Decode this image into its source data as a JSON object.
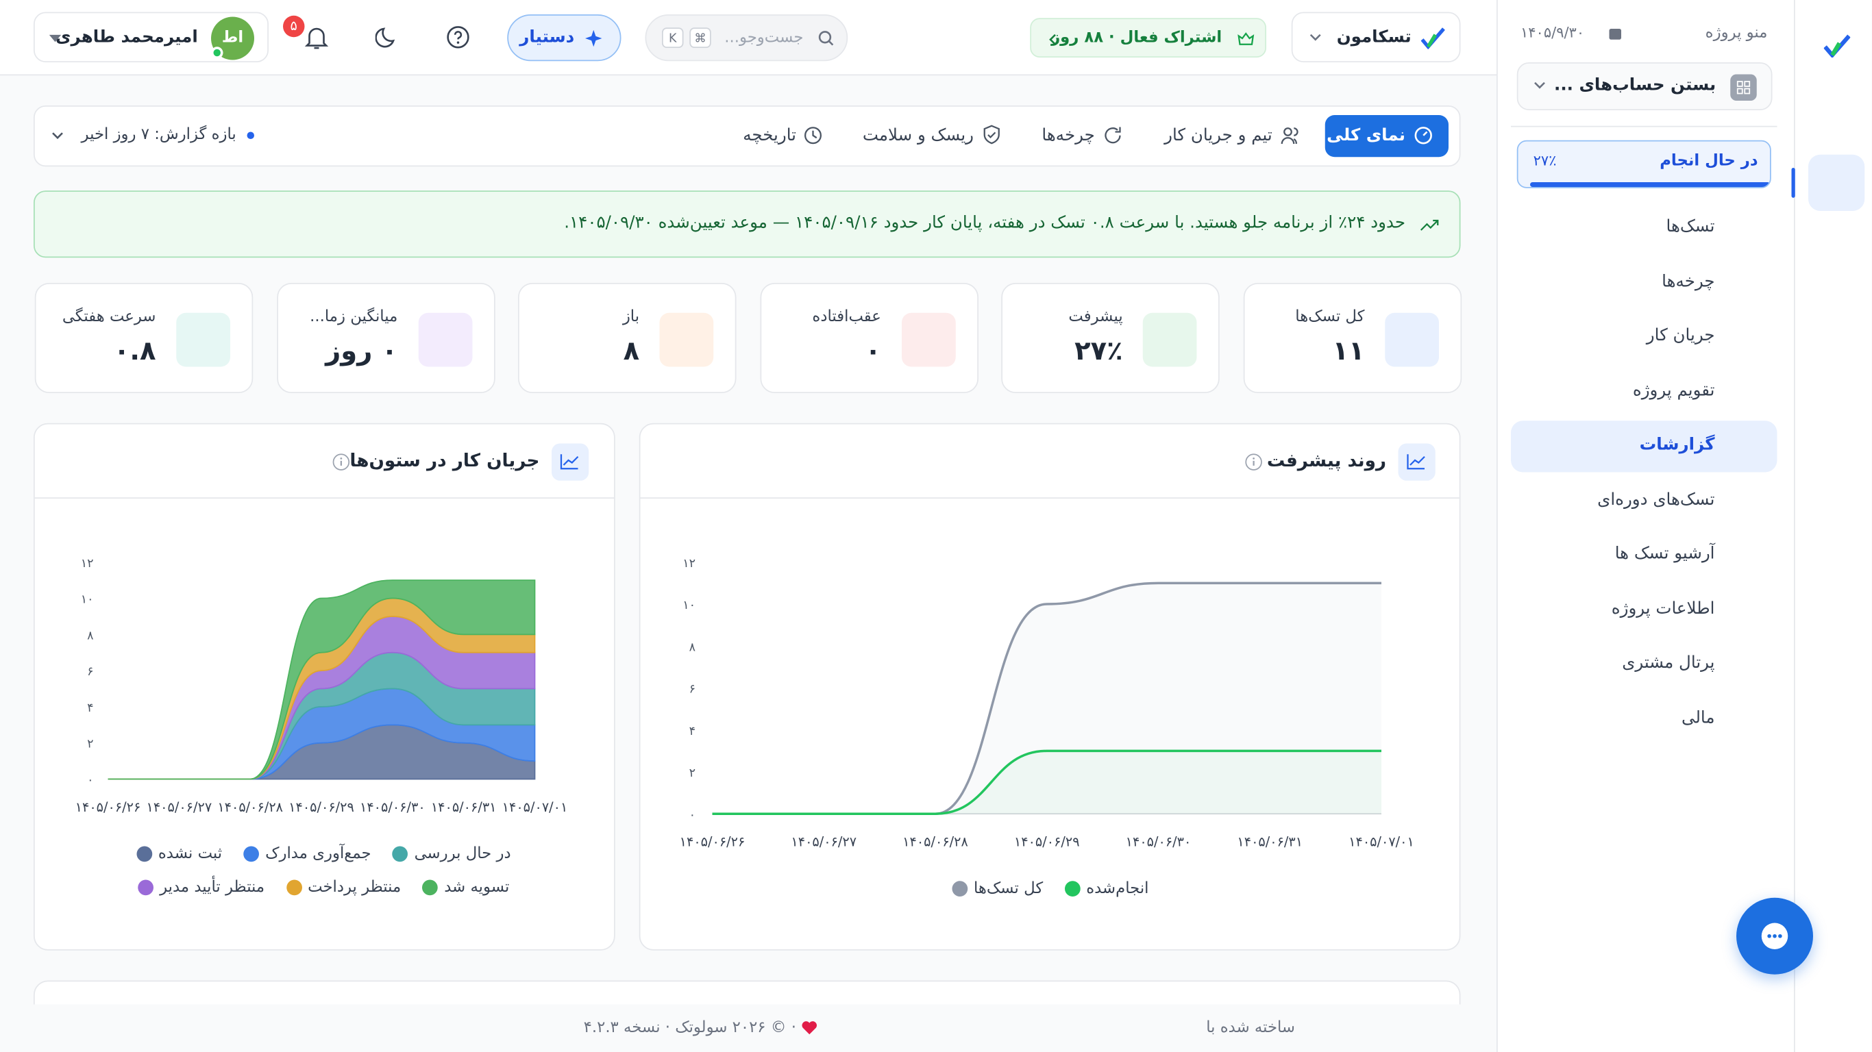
{
  "header": {
    "project": "تسکامون",
    "subscription": "اشتراک فعال · ۸۸ روز",
    "search": "جست‌وجو...",
    "shortcut": [
      "⌘",
      "K"
    ],
    "assistant": "دستیار",
    "notifications": "۵",
    "user": "امیرمحمد طاهری",
    "avatar": "اط"
  },
  "tabs": {
    "items": [
      "نمای کلی",
      "تیم و جریان کار",
      "چرخه‌ها",
      "ریسک و سلامت",
      "تاریخچه"
    ],
    "active": 0,
    "range": "بازه گزارش: ۷ روز اخیر"
  },
  "banner": "حدود ۲۴٪ از برنامه جلو هستید. با سرعت ۰.۸ تسک در هفته، پایان کار حدود ۱۴۰۵/۰۹/۱۶ — موعد تعیین‌شده ۱۴۰۵/۰۹/۳۰.",
  "kpis": [
    {
      "label": "کل تسک‌ها",
      "value": "۱۱"
    },
    {
      "label": "پیشرفت",
      "value": "۲۷٪"
    },
    {
      "label": "عقب‌افتاده",
      "value": "۰"
    },
    {
      "label": "باز",
      "value": "۸"
    },
    {
      "label": "میانگین زما...",
      "value": "۰ روز"
    },
    {
      "label": "سرعت هفتگی",
      "value": "۰.۸"
    }
  ],
  "chart_data": [
    {
      "type": "line",
      "title": "روند پیشرفت",
      "categories": [
        "۱۴۰۵/۰۶/۲۶",
        "۱۴۰۵/۰۶/۲۷",
        "۱۴۰۵/۰۶/۲۸",
        "۱۴۰۵/۰۶/۲۹",
        "۱۴۰۵/۰۶/۳۰",
        "۱۴۰۵/۰۶/۳۱",
        "۱۴۰۵/۰۷/۰۱"
      ],
      "series": [
        {
          "name": "کل تسک‌ها",
          "color": "#8f98a8",
          "values": [
            0,
            0,
            0,
            10,
            11,
            11,
            11
          ]
        },
        {
          "name": "انجام‌شده",
          "color": "#22c55e",
          "values": [
            0,
            0,
            0,
            3,
            3,
            3,
            3
          ]
        }
      ],
      "ylim": [
        0,
        12
      ],
      "yticks": [
        {
          "value": 0,
          "label": "۰"
        },
        {
          "value": 2,
          "label": "۲"
        },
        {
          "value": 4,
          "label": "۴"
        },
        {
          "value": 6,
          "label": "۶"
        },
        {
          "value": 8,
          "label": "۸"
        },
        {
          "value": 10,
          "label": "۱۰"
        },
        {
          "value": 12,
          "label": "۱۲"
        }
      ]
    },
    {
      "type": "area",
      "stacked": true,
      "title": "جریان کار در ستون‌ها",
      "categories": [
        "۱۴۰۵/۰۶/۲۶",
        "۱۴۰۵/۰۶/۲۷",
        "۱۴۰۵/۰۶/۲۸",
        "۱۴۰۵/۰۶/۲۹",
        "۱۴۰۵/۰۶/۳۰",
        "۱۴۰۵/۰۶/۳۱",
        "۱۴۰۵/۰۷/۰۱"
      ],
      "series": [
        {
          "name": "ثبت نشده",
          "color": "#5a6f99",
          "values": [
            0,
            0,
            0,
            2,
            3,
            2,
            1
          ]
        },
        {
          "name": "جمع‌آوری مدارک",
          "color": "#3d7fe6",
          "values": [
            0,
            0,
            0,
            2,
            2,
            1,
            2
          ]
        },
        {
          "name": "در حال بررسی",
          "color": "#45a8a8",
          "values": [
            0,
            0,
            0,
            1,
            2,
            2,
            2
          ]
        },
        {
          "name": "منتظر تأیید مدیر",
          "color": "#9a6ad8",
          "values": [
            0,
            0,
            0,
            1,
            2,
            2,
            2
          ]
        },
        {
          "name": "منتظر پرداخت",
          "color": "#e1a530",
          "values": [
            0,
            0,
            0,
            1,
            1,
            1,
            1
          ]
        },
        {
          "name": "تسویه شد",
          "color": "#4cb35f",
          "values": [
            0,
            0,
            0,
            3,
            1,
            3,
            3
          ]
        }
      ],
      "ylim": [
        0,
        12
      ],
      "yticks": [
        {
          "value": 0,
          "label": "۰"
        },
        {
          "value": 2,
          "label": "۲"
        },
        {
          "value": 4,
          "label": "۴"
        },
        {
          "value": 6,
          "label": "۶"
        },
        {
          "value": 8,
          "label": "۸"
        },
        {
          "value": 10,
          "label": "۱۰"
        },
        {
          "value": 12,
          "label": "۱۲"
        }
      ]
    }
  ],
  "sidebar": {
    "title": "منو پروژه",
    "date": "۱۴۰۵/۹/۳۰",
    "project": "بستن حساب‌های ...",
    "status": "در حال انجام",
    "progress": "۲۷٪",
    "items": [
      "تسک‌ها",
      "چرخه‌ها",
      "جریان کار",
      "تقویم پروژه",
      "گزارشات",
      "تسک‌های دوره‌ای",
      "آرشیو تسک ها",
      "اطلاعات پروژه",
      "پرتال مشتری",
      "مالی"
    ],
    "active": 4
  },
  "footer": {
    "made_with": "ساخته شده با",
    "rest": "· © ۲۰۲۶ سولوتک · نسخه ۴.۲.۳"
  }
}
